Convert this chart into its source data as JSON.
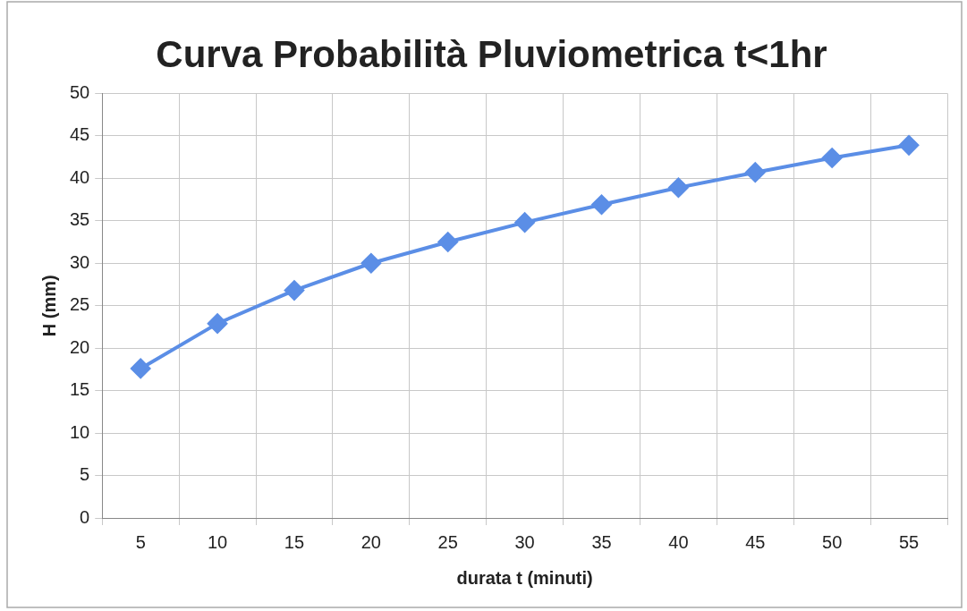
{
  "chart_data": {
    "type": "line",
    "title": "Curva Probabilità Pluviometrica t<1hr",
    "xlabel": "durata t (minuti)",
    "ylabel": "H (mm)",
    "categories": [
      "5",
      "10",
      "15",
      "20",
      "25",
      "30",
      "35",
      "40",
      "45",
      "50",
      "55"
    ],
    "series": [
      {
        "color": "#5b8ee6",
        "values": [
          17.6,
          22.9,
          26.8,
          30.0,
          32.5,
          34.8,
          36.9,
          38.9,
          40.7,
          42.4,
          43.9
        ]
      }
    ],
    "ylim": [
      0,
      50
    ],
    "yticks": [
      0,
      5,
      10,
      15,
      20,
      25,
      30,
      35,
      40,
      45,
      50
    ],
    "grid": true,
    "marker": "diamond",
    "line_style": "solid"
  }
}
